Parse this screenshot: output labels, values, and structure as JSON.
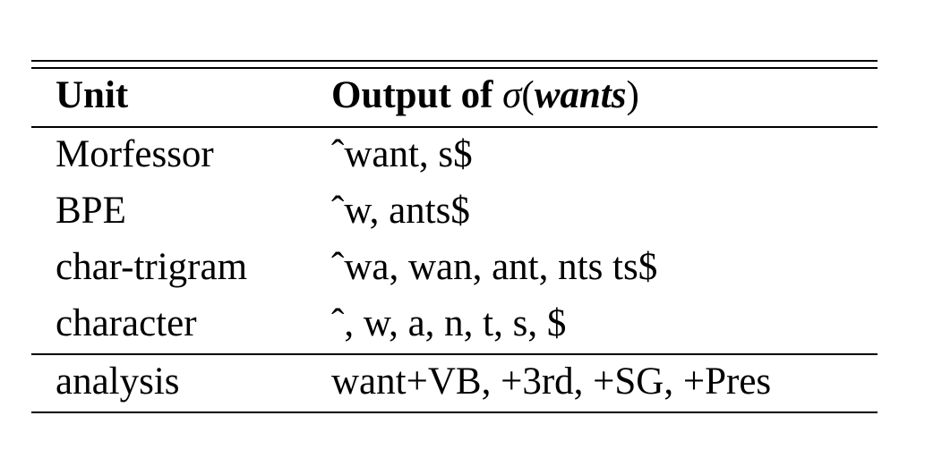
{
  "table": {
    "header": {
      "unit": "Unit",
      "output_prefix": "Output of ",
      "output_symbol": "σ",
      "output_open": "(",
      "output_word": "wants",
      "output_close": ")"
    },
    "rows": [
      {
        "unit": "Morfessor",
        "output": "ˆwant, s$"
      },
      {
        "unit": "BPE",
        "output": "ˆw, ants$"
      },
      {
        "unit": "char-trigram",
        "output": "ˆwa, wan, ant, nts ts$"
      },
      {
        "unit": "character",
        "output": "ˆ, w, a, n, t, s, $"
      },
      {
        "unit": "analysis",
        "output": "want+VB, +3rd, +SG, +Pres"
      }
    ]
  }
}
